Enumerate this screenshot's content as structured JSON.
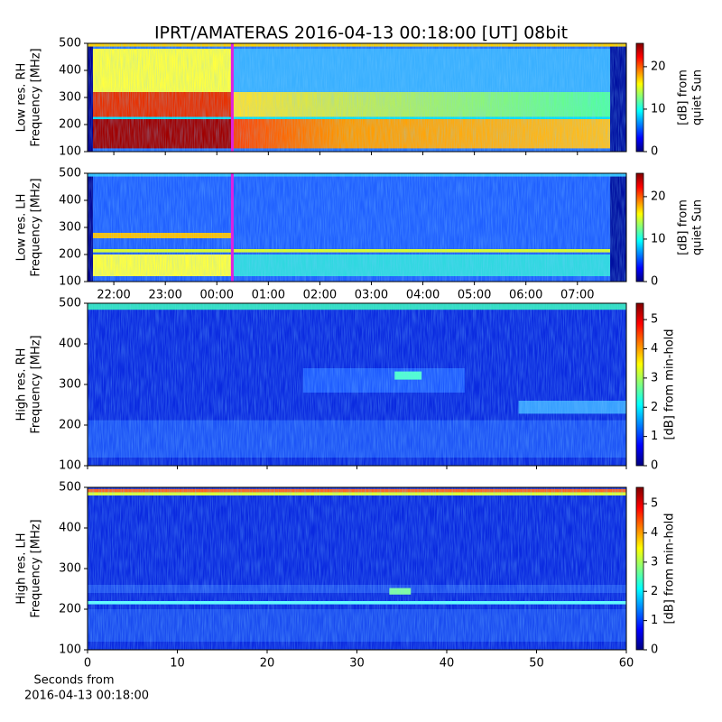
{
  "title": "IPRT/AMATERAS 2016-04-13 00:18:00 [UT]   08bit",
  "chart_data": [
    {
      "type": "heatmap",
      "ylabel": [
        "Low res. RH",
        "Frequency [MHz]"
      ],
      "ylim": [
        100,
        500
      ],
      "yticks": [
        100,
        200,
        300,
        400,
        500
      ],
      "xlim": [
        21.49,
        31.95
      ],
      "marker_x": 24.3,
      "marker_color": "#e020e0",
      "colorbar": {
        "label": [
          "[dB] from",
          "quiet Sun"
        ],
        "lim": [
          0,
          25.5
        ],
        "ticks": [
          0,
          10,
          20
        ]
      }
    },
    {
      "type": "heatmap",
      "ylabel": [
        "Low res. LH",
        "Frequency [MHz]"
      ],
      "ylim": [
        100,
        500
      ],
      "yticks": [
        100,
        200,
        300,
        400,
        500
      ],
      "xlim": [
        21.49,
        31.95
      ],
      "marker_x": 24.3,
      "marker_color": "#e020e0",
      "xticks": [
        {
          "value": 22,
          "label": "22:00"
        },
        {
          "value": 23,
          "label": "23:00"
        },
        {
          "value": 24,
          "label": "00:00"
        },
        {
          "value": 25,
          "label": "01:00"
        },
        {
          "value": 26,
          "label": "02:00"
        },
        {
          "value": 27,
          "label": "03:00"
        },
        {
          "value": 28,
          "label": "04:00"
        },
        {
          "value": 29,
          "label": "05:00"
        },
        {
          "value": 30,
          "label": "06:00"
        },
        {
          "value": 31,
          "label": "07:00"
        }
      ],
      "colorbar": {
        "label": [
          "[dB] from",
          "quiet Sun"
        ],
        "lim": [
          0,
          25.5
        ],
        "ticks": [
          0,
          10,
          20
        ]
      }
    },
    {
      "type": "heatmap",
      "ylabel": [
        "High res. RH",
        "Frequency [MHz]"
      ],
      "ylim": [
        100,
        500
      ],
      "yticks": [
        100,
        200,
        300,
        400,
        500
      ],
      "xlim": [
        0,
        60
      ],
      "colorbar": {
        "label": [
          "[dB] from min-hold"
        ],
        "lim": [
          0,
          5.56
        ],
        "ticks": [
          0,
          1,
          2,
          3,
          4,
          5
        ]
      }
    },
    {
      "type": "heatmap",
      "ylabel": [
        "High res. LH",
        "Frequency [MHz]"
      ],
      "ylim": [
        100,
        500
      ],
      "yticks": [
        100,
        200,
        300,
        400,
        500
      ],
      "xlim": [
        0,
        60
      ],
      "xticks": [
        0,
        10,
        20,
        30,
        40,
        50,
        60
      ],
      "xlabel": [
        "Seconds from",
        "2016-04-13 00:18:00"
      ],
      "colorbar": {
        "label": [
          "[dB] from min-hold"
        ],
        "lim": [
          0,
          5.56
        ],
        "ticks": [
          0,
          1,
          2,
          3,
          4,
          5
        ]
      }
    }
  ]
}
